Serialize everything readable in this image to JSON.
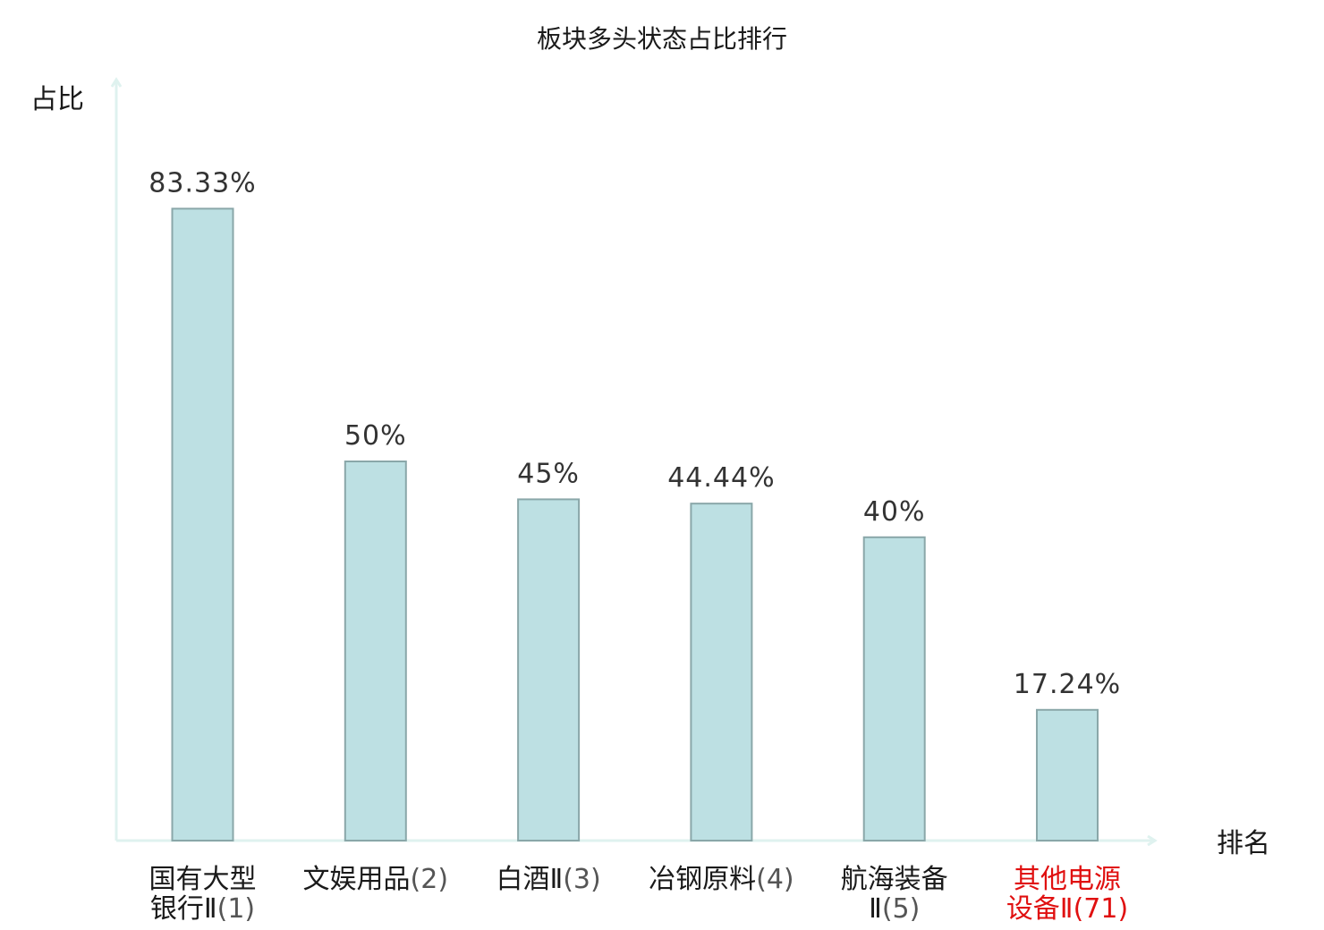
{
  "chart_data": {
    "type": "bar",
    "title": "板块多头状态占比排行",
    "ylabel": "占比",
    "xlabel": "排名",
    "ylim": [
      0,
      100
    ],
    "grid": false,
    "categories": [
      {
        "name_lines": [
          "国有大型",
          "银行Ⅱ"
        ],
        "rank": "(1)",
        "highlight": false
      },
      {
        "name_lines": [
          "文娱用品"
        ],
        "rank": "(2)",
        "highlight": false
      },
      {
        "name_lines": [
          "白酒Ⅱ"
        ],
        "rank": "(3)",
        "highlight": false
      },
      {
        "name_lines": [
          "冶钢原料"
        ],
        "rank": "(4)",
        "highlight": false
      },
      {
        "name_lines": [
          "航海装备",
          "Ⅱ"
        ],
        "rank": "(5)",
        "highlight": false
      },
      {
        "name_lines": [
          "其他电源",
          "设备Ⅱ"
        ],
        "rank": "(71)",
        "highlight": true
      }
    ],
    "values": [
      83.33,
      50,
      45,
      44.44,
      40,
      17.24
    ],
    "value_labels": [
      "83.33%",
      "50%",
      "45%",
      "44.44%",
      "40%",
      "17.24%"
    ],
    "colors": {
      "bar_fill": "#bde0e3",
      "bar_stroke": "#8aa7a9",
      "axis": "#dff2ef",
      "highlight_text": "#e01010"
    }
  }
}
